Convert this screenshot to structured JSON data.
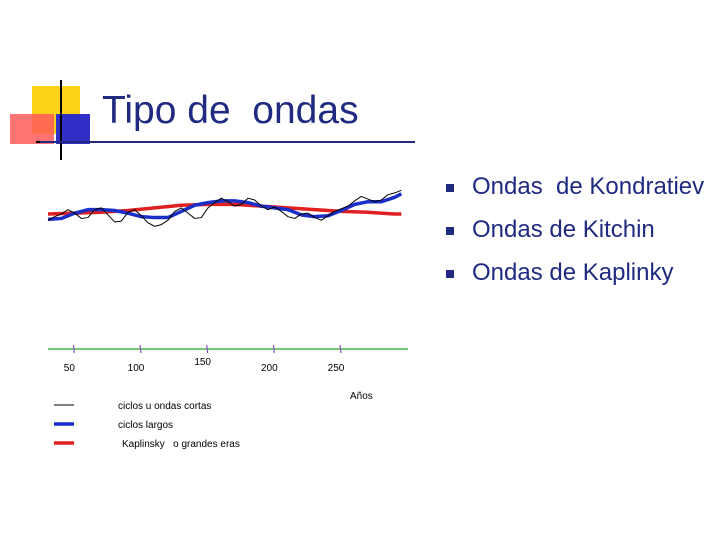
{
  "slide": {
    "title": "Tipo de  ondas",
    "bullets": [
      "Ondas  de Kondratiev",
      "Ondas de Kitchin",
      "Ondas de Kaplinky"
    ]
  },
  "icons": {
    "bullet": "square-bullet-icon",
    "logo": "slide-corner-logo"
  },
  "colors": {
    "title": "#1f2a80",
    "short_cycles": "#000000",
    "long_cycles": "#1a2fc8",
    "great_eras": "#e02020",
    "time_axis": "#22aa22",
    "logo_yellow": "#ffd21a",
    "logo_red": "#ff5a5a",
    "logo_blue": "#3030c8"
  },
  "chart_data": {
    "type": "line",
    "title": "",
    "xlabel": "Años",
    "ylabel": "",
    "xlim": [
      40,
      310
    ],
    "ylim": [
      0,
      10
    ],
    "x_ticks": [
      50,
      100,
      150,
      200,
      250
    ],
    "grid": false,
    "legend_position": "bottom-left",
    "legend": [
      "ciclos u ondas cortas",
      "ciclos largos",
      "Kaplinsky   o grandes eras"
    ],
    "series": [
      {
        "name": "ciclos u ondas cortas",
        "x": [
          40,
          45,
          50,
          55,
          60,
          65,
          70,
          75,
          80,
          85,
          90,
          95,
          100,
          105,
          110,
          115,
          120,
          125,
          130,
          135,
          140,
          145,
          150,
          155,
          160,
          165,
          170,
          175,
          180,
          185,
          190,
          195,
          200,
          205,
          210,
          215,
          220,
          225,
          230,
          235,
          240,
          245,
          250,
          255,
          260,
          265,
          270,
          275,
          280,
          285,
          290,
          295,
          300,
          305
        ],
        "y": [
          6.0,
          6.4,
          6.7,
          7.2,
          6.8,
          6.2,
          6.3,
          7.2,
          7.4,
          6.6,
          5.8,
          5.9,
          6.9,
          7.2,
          6.5,
          5.7,
          5.3,
          5.5,
          6.0,
          7.0,
          7.4,
          6.8,
          6.2,
          6.3,
          7.4,
          8.0,
          8.5,
          8.1,
          7.6,
          7.8,
          8.5,
          8.3,
          7.6,
          7.2,
          7.5,
          7.0,
          6.4,
          6.2,
          6.7,
          6.8,
          6.3,
          6.0,
          6.5,
          7.0,
          7.3,
          7.6,
          8.2,
          8.7,
          8.4,
          8.1,
          8.3,
          8.9,
          9.1,
          9.4
        ]
      },
      {
        "name": "ciclos largos",
        "x": [
          40,
          50,
          60,
          70,
          80,
          90,
          100,
          110,
          120,
          130,
          140,
          150,
          160,
          170,
          180,
          190,
          200,
          210,
          220,
          230,
          240,
          250,
          260,
          270,
          280,
          290,
          300,
          305
        ],
        "y": [
          6.1,
          6.2,
          6.8,
          7.2,
          7.2,
          7.1,
          6.8,
          6.4,
          6.3,
          6.3,
          7.0,
          7.7,
          8.0,
          8.2,
          8.2,
          8.0,
          7.6,
          7.4,
          7.2,
          6.6,
          6.4,
          6.5,
          7.1,
          7.8,
          8.1,
          8.1,
          8.6,
          9.0
        ]
      },
      {
        "name": "Kaplinsky   o grandes eras",
        "x": [
          40,
          60,
          80,
          100,
          120,
          140,
          160,
          180,
          200,
          220,
          240,
          260,
          280,
          300,
          305
        ],
        "y": [
          6.7,
          6.8,
          6.9,
          7.1,
          7.4,
          7.7,
          7.8,
          7.8,
          7.6,
          7.4,
          7.2,
          7.0,
          6.9,
          6.7,
          6.7
        ]
      }
    ]
  }
}
